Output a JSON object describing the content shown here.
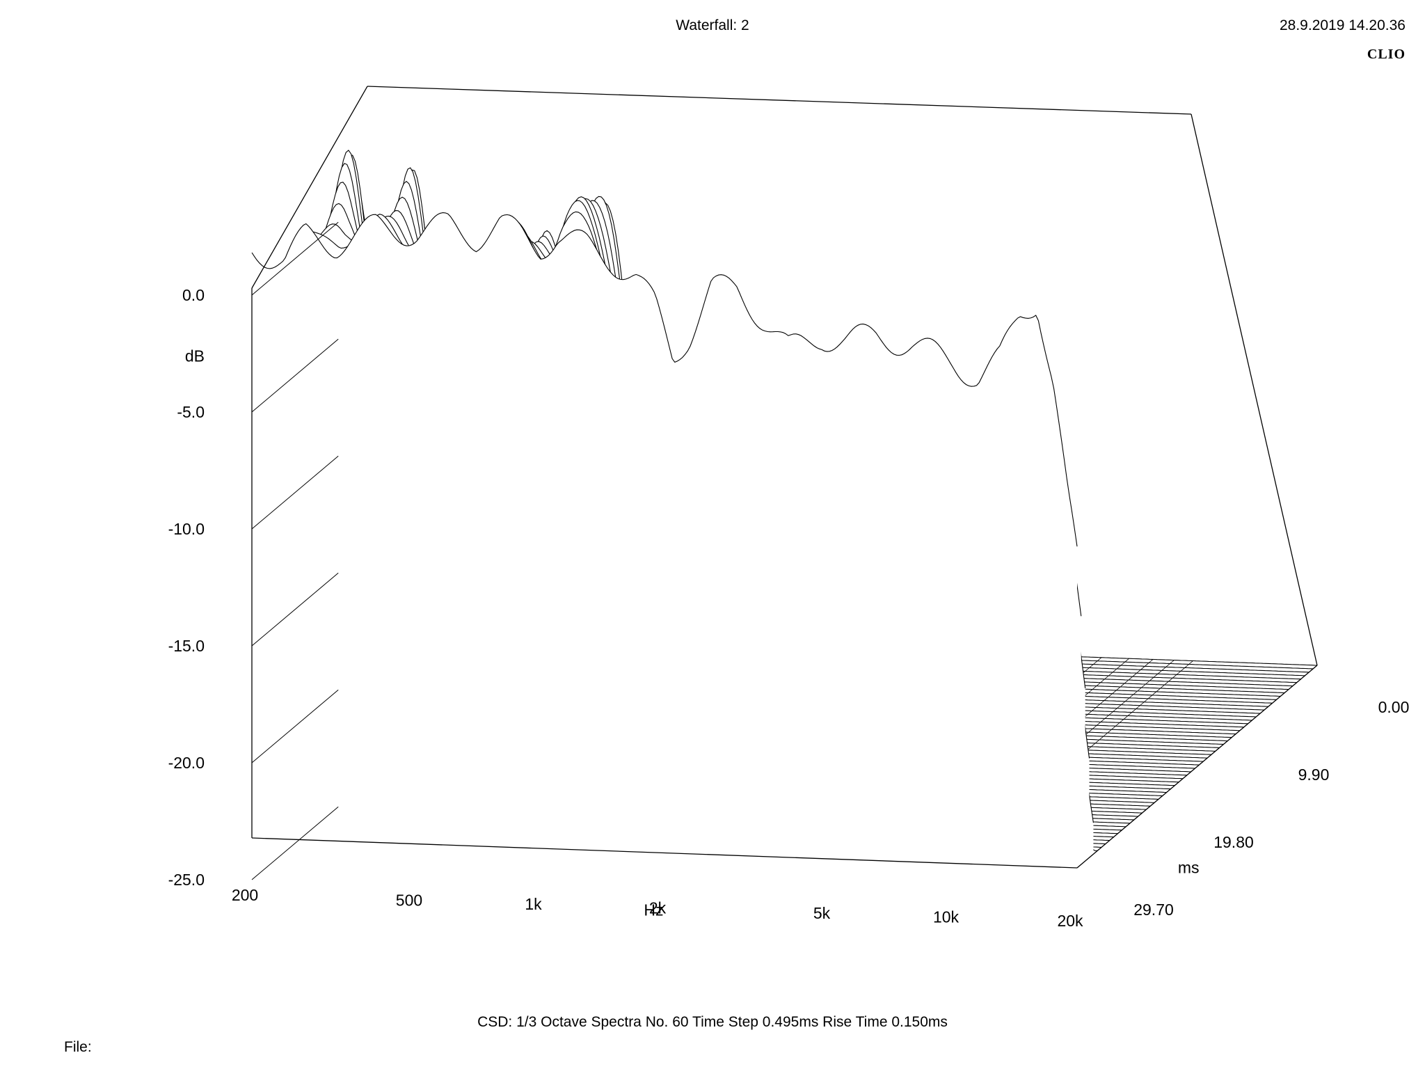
{
  "header": {
    "title": "Waterfall: 2",
    "timestamp": "28.9.2019 14.20.36",
    "brand": "CLIO"
  },
  "footer": {
    "info": "CSD:   1/3 Octave   Spectra No. 60   Time Step 0.495ms   Rise Time 0.150ms",
    "file_label": "File:"
  },
  "chart_data": {
    "type": "waterfall",
    "title": "Waterfall: 2",
    "x_axis": {
      "label": "Hz",
      "scale": "log",
      "range": [
        200,
        20000
      ],
      "ticks": [
        {
          "value": 200,
          "label": "200"
        },
        {
          "value": 500,
          "label": "500"
        },
        {
          "value": 1000,
          "label": "1k"
        },
        {
          "value": 2000,
          "label": "2k"
        },
        {
          "value": 5000,
          "label": "5k"
        },
        {
          "value": 10000,
          "label": "10k"
        },
        {
          "value": 20000,
          "label": "20k"
        }
      ]
    },
    "y_axis": {
      "label": "dB",
      "range": [
        -25,
        0
      ],
      "ticks": [
        {
          "value": 0,
          "label": "0.0"
        },
        {
          "value": -5,
          "label": "-5.0"
        },
        {
          "value": -10,
          "label": "-10.0"
        },
        {
          "value": -15,
          "label": "-15.0"
        },
        {
          "value": -20,
          "label": "-20.0"
        },
        {
          "value": -25,
          "label": "-25.0"
        }
      ]
    },
    "z_axis": {
      "label": "ms",
      "range": [
        0,
        29.7
      ],
      "ticks": [
        {
          "value": 0,
          "label": "0.00"
        },
        {
          "value": 9.9,
          "label": "9.90"
        },
        {
          "value": 19.8,
          "label": "19.80"
        },
        {
          "value": 29.7,
          "label": "29.70"
        }
      ]
    },
    "spectra_count": 60,
    "time_step_ms": 0.495,
    "rise_time_ms": 0.15,
    "smoothing": "1/3 Octave",
    "first_spectrum": [
      [
        200,
        2.0
      ],
      [
        240,
        1.5
      ],
      [
        270,
        2.6
      ],
      [
        320,
        2.3
      ],
      [
        400,
        3.1
      ],
      [
        500,
        2.9
      ],
      [
        600,
        3.3
      ],
      [
        700,
        2.8
      ],
      [
        800,
        3.4
      ],
      [
        900,
        3.0
      ],
      [
        1000,
        2.5
      ],
      [
        1100,
        3.0
      ],
      [
        1300,
        2.6
      ],
      [
        1500,
        2.0
      ],
      [
        1700,
        1.4
      ],
      [
        1900,
        0.1
      ],
      [
        2100,
        -2.0
      ],
      [
        2300,
        -1.0
      ],
      [
        2600,
        1.0
      ],
      [
        3000,
        1.0
      ],
      [
        3500,
        -0.3
      ],
      [
        4000,
        -1.5
      ],
      [
        4800,
        -0.9
      ],
      [
        5500,
        -1.0
      ],
      [
        6500,
        -0.8
      ],
      [
        8000,
        -1.1
      ],
      [
        10000,
        -1.8
      ],
      [
        11500,
        -2.4
      ],
      [
        13000,
        -1.6
      ],
      [
        14500,
        0.3
      ],
      [
        16000,
        1.0
      ],
      [
        17500,
        -2.5
      ],
      [
        19000,
        -7.5
      ],
      [
        20000,
        -10.0
      ]
    ]
  }
}
